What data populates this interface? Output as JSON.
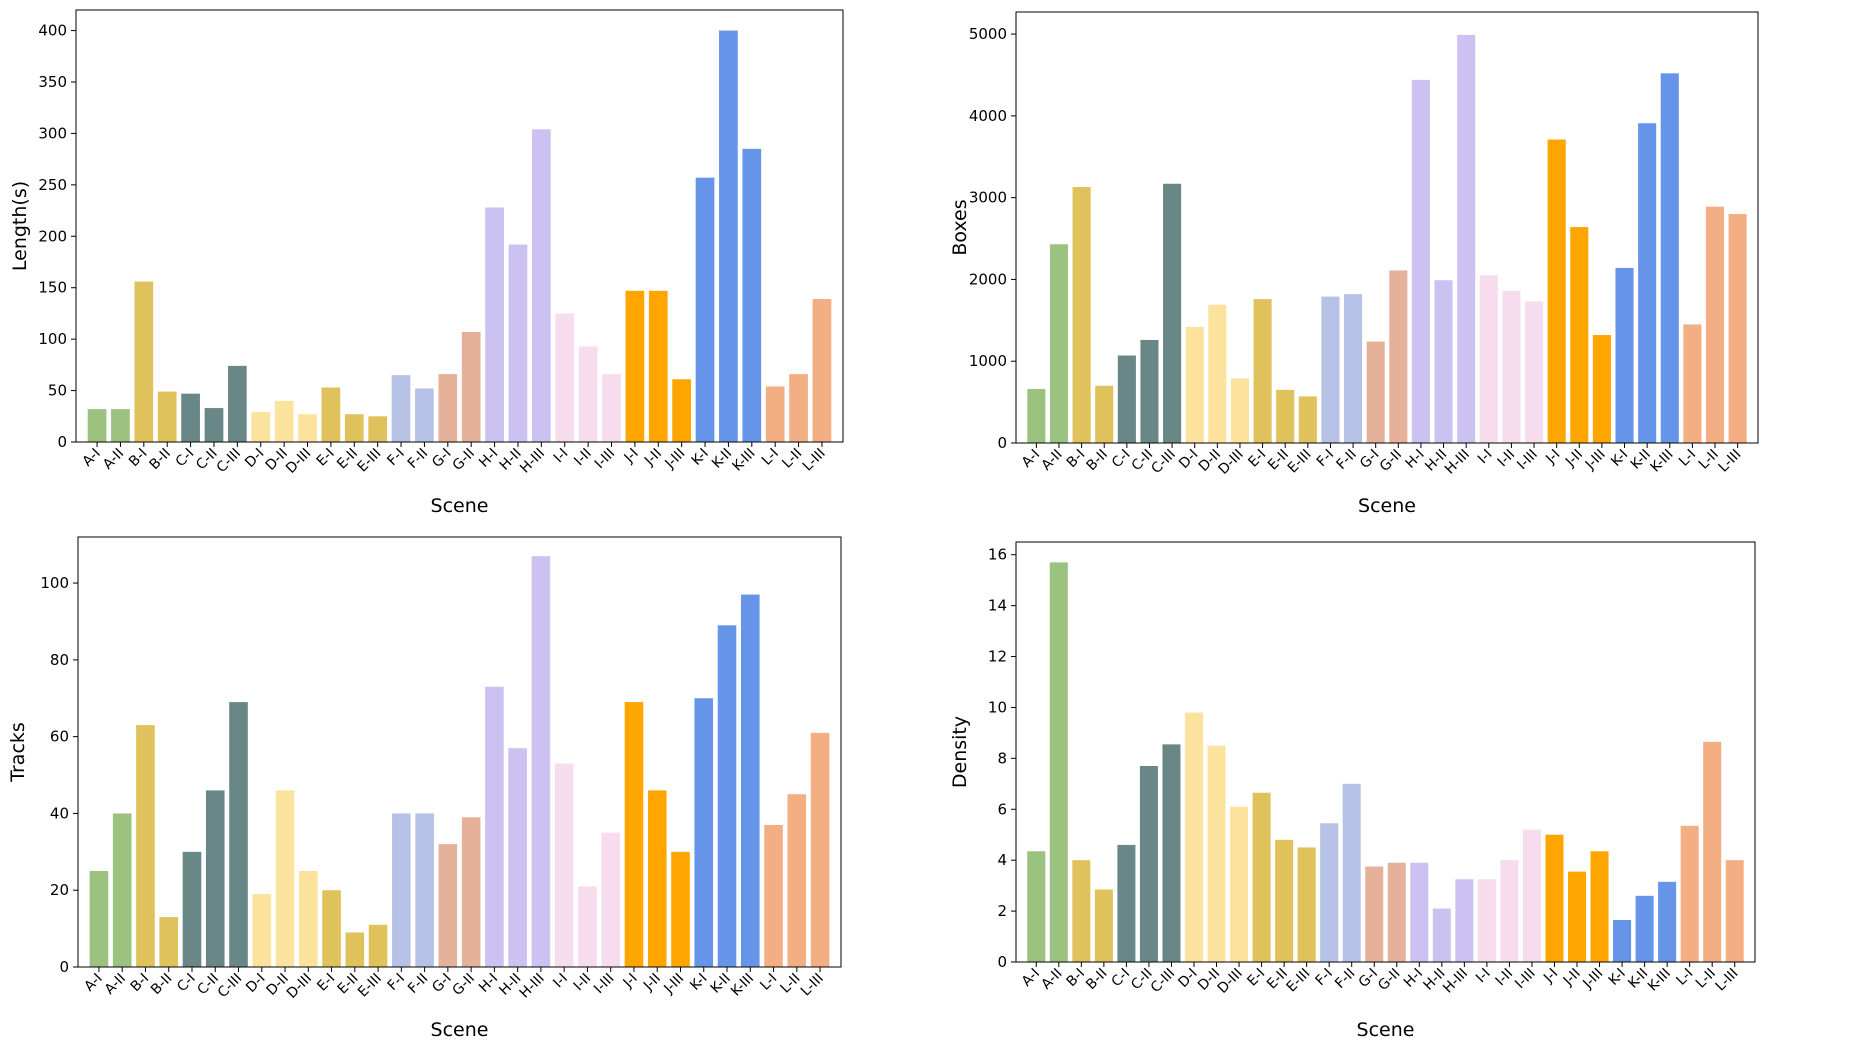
{
  "scenes": [
    "A-I",
    "A-II",
    "B-I",
    "B-II",
    "C-I",
    "C-II",
    "C-III",
    "D-I",
    "D-II",
    "D-III",
    "E-I",
    "E-II",
    "E-III",
    "F-I",
    "F-II",
    "G-I",
    "G-II",
    "H-I",
    "H-II",
    "H-III",
    "I-I",
    "I-II",
    "I-III",
    "J-I",
    "J-II",
    "J-III",
    "K-I",
    "K-II",
    "K-III",
    "L-I",
    "L-II",
    "L-III"
  ],
  "scene_colors": [
    "#9bc27f",
    "#9bc27f",
    "#dfc25c",
    "#dfc25c",
    "#6a8787",
    "#6a8787",
    "#6a8787",
    "#fbe29d",
    "#fbe29d",
    "#fbe29d",
    "#dfc25c",
    "#dfc25c",
    "#dfc25c",
    "#b5c2e6",
    "#b5c2e6",
    "#e6b19a",
    "#e6b19a",
    "#cbc2f2",
    "#cbc2f2",
    "#cbc2f2",
    "#f7dcee",
    "#f7dcee",
    "#f7dcee",
    "#ffa500",
    "#ffa500",
    "#ffa500",
    "#6594e8",
    "#6594e8",
    "#6594e8",
    "#f4ae83",
    "#f4ae83",
    "#f4ae83"
  ],
  "chart_data": [
    {
      "type": "bar",
      "xlabel": "Scene",
      "ylabel": "Length(s)",
      "ylim": [
        0,
        420
      ],
      "yticks": [
        0,
        50,
        100,
        150,
        200,
        250,
        300,
        350,
        400
      ],
      "values": [
        32,
        32,
        156,
        49,
        47,
        33,
        74,
        29,
        40,
        27,
        53,
        27,
        25,
        65,
        52,
        66,
        107,
        228,
        192,
        304,
        125,
        93,
        66,
        147,
        147,
        61,
        257,
        400,
        285,
        54,
        66,
        139
      ]
    },
    {
      "type": "bar",
      "xlabel": "Scene",
      "ylabel": "Boxes",
      "ylim": [
        0,
        5270
      ],
      "yticks": [
        0,
        1000,
        2000,
        3000,
        4000,
        5000
      ],
      "values": [
        660,
        2430,
        3130,
        700,
        1070,
        1260,
        3170,
        1420,
        1690,
        790,
        1760,
        650,
        570,
        1790,
        1820,
        1240,
        2110,
        4440,
        1990,
        4990,
        2050,
        1860,
        1730,
        3710,
        2640,
        1320,
        2140,
        3910,
        4520,
        1450,
        2890,
        2800
      ]
    },
    {
      "type": "bar",
      "xlabel": "Scene",
      "ylabel": "Tracks",
      "ylim": [
        0,
        112
      ],
      "yticks": [
        0,
        20,
        40,
        60,
        80,
        100
      ],
      "values": [
        25,
        40,
        63,
        13,
        30,
        46,
        69,
        19,
        46,
        25,
        20,
        9,
        11,
        40,
        40,
        32,
        39,
        73,
        57,
        107,
        53,
        21,
        35,
        69,
        46,
        30,
        70,
        89,
        97,
        37,
        45,
        61
      ]
    },
    {
      "type": "bar",
      "xlabel": "Scene",
      "ylabel": "Density",
      "ylim": [
        0,
        16.5
      ],
      "yticks": [
        0,
        2,
        4,
        6,
        8,
        10,
        12,
        14,
        16
      ],
      "values": [
        4.35,
        15.7,
        4.0,
        2.85,
        4.6,
        7.7,
        8.55,
        9.8,
        8.5,
        6.1,
        6.65,
        4.8,
        4.5,
        5.45,
        7.0,
        3.75,
        3.9,
        3.9,
        2.1,
        3.25,
        3.25,
        4.0,
        5.2,
        5.0,
        3.55,
        4.35,
        1.65,
        2.6,
        3.15,
        5.35,
        8.65,
        4.0
      ]
    }
  ]
}
